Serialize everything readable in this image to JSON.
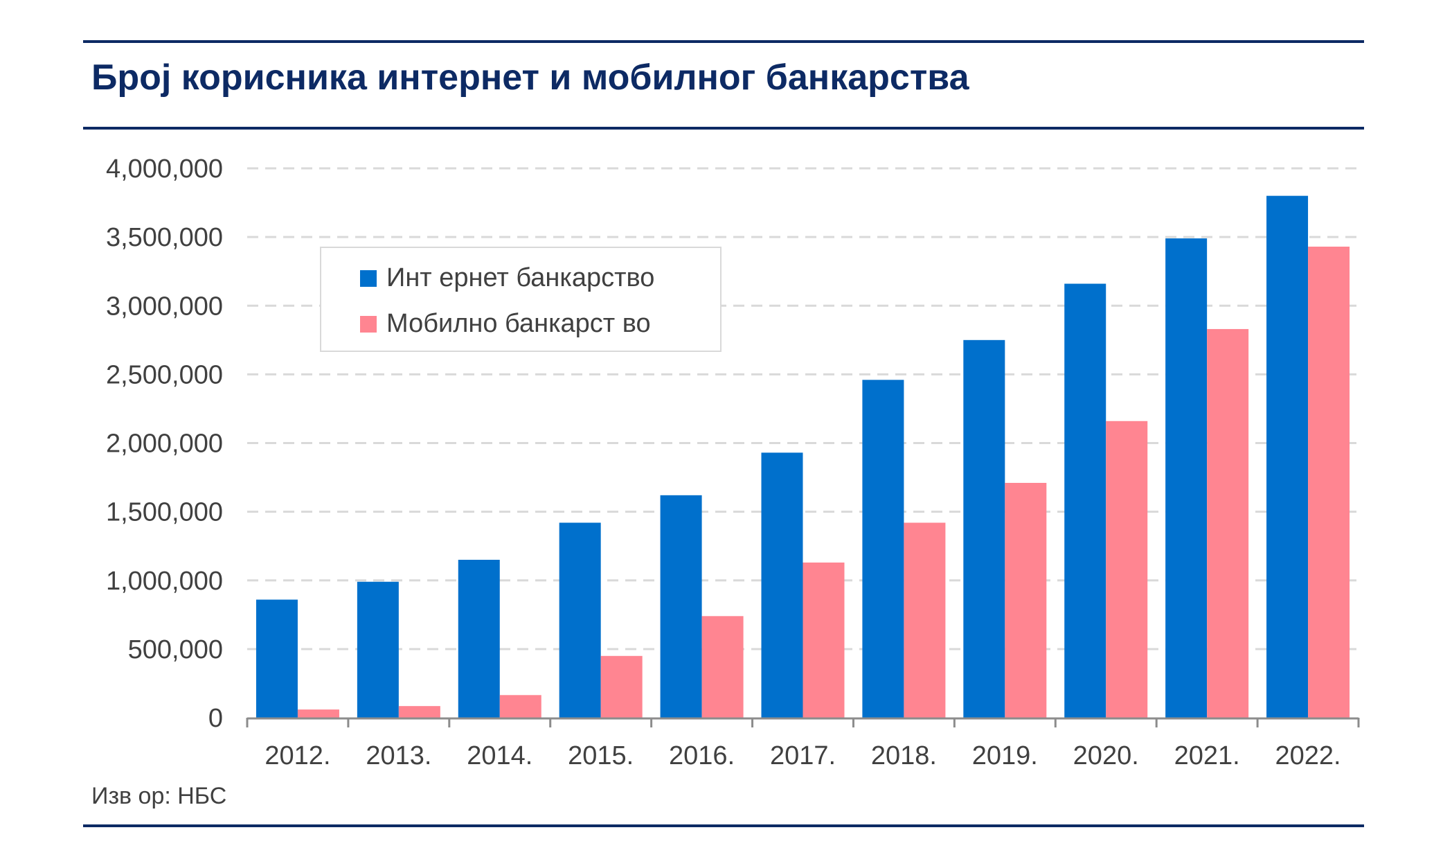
{
  "title": "Број корисника интернет и мобилног банкарства",
  "source": "Изв ор: НБС",
  "colors": {
    "internet": "#0070cc",
    "mobile": "#ff8591",
    "rule": "#0d2a64",
    "grid": "#d9d9d9",
    "axis_text": "#404040"
  },
  "legend": {
    "internet_label": "Инт ернет банкарство",
    "mobile_label": "Мобилно банкарст во",
    "placement": "upper-left"
  },
  "chart_data": {
    "type": "bar",
    "categories": [
      "2012.",
      "2013.",
      "2014.",
      "2015.",
      "2016.",
      "2017.",
      "2018.",
      "2019.",
      "2020.",
      "2021.",
      "2022."
    ],
    "series": [
      {
        "name": "Инт ернет банкарство",
        "values": [
          860000,
          990000,
          1150000,
          1420000,
          1620000,
          1930000,
          2460000,
          2750000,
          3160000,
          3490000,
          3800000
        ]
      },
      {
        "name": "Мобилно банкарст во",
        "values": [
          60000,
          85000,
          165000,
          450000,
          740000,
          1130000,
          1420000,
          1710000,
          2160000,
          2830000,
          3430000
        ]
      }
    ],
    "ylim": [
      0,
      4000000
    ],
    "yticks": [
      "0",
      "500,000",
      "1,000,000",
      "1,500,000",
      "2,000,000",
      "2,500,000",
      "3,000,000",
      "3,500,000",
      "4,000,000"
    ],
    "grid": "dashed horizontal"
  }
}
